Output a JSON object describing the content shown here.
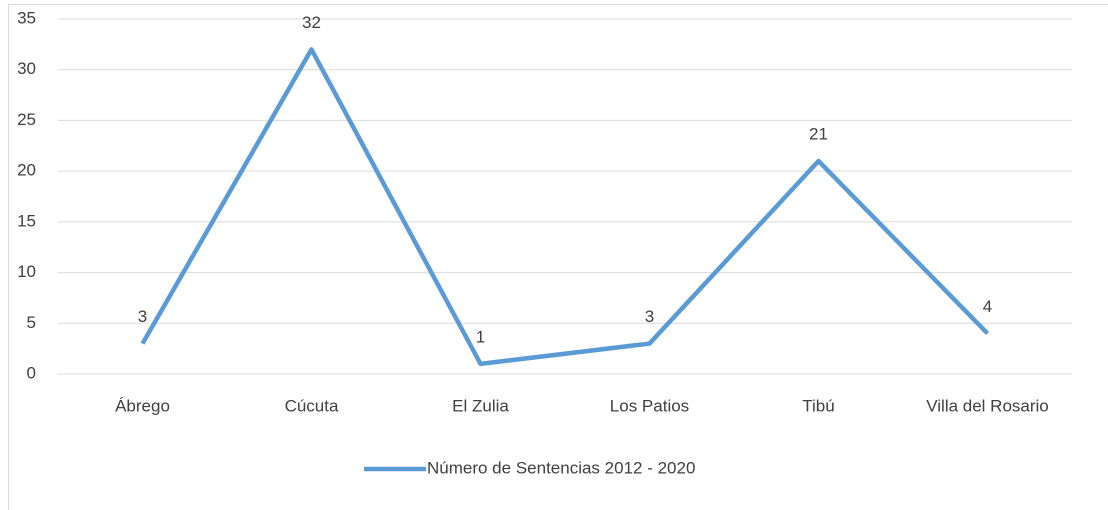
{
  "chart_data": {
    "type": "line",
    "categories": [
      "Ábrego",
      "Cúcuta",
      "El Zulia",
      "Los Patios",
      "Tibú",
      "Villa del Rosario"
    ],
    "series": [
      {
        "name": "Número de Sentencias 2012 - 2020",
        "color": "#5b9bd5",
        "values": [
          3,
          32,
          1,
          3,
          21,
          4
        ]
      }
    ],
    "ylim": [
      0,
      35
    ],
    "yticks": [
      0,
      5,
      10,
      15,
      20,
      25,
      30,
      35
    ],
    "grid": true,
    "legend": "bottom",
    "data_labels": true
  }
}
